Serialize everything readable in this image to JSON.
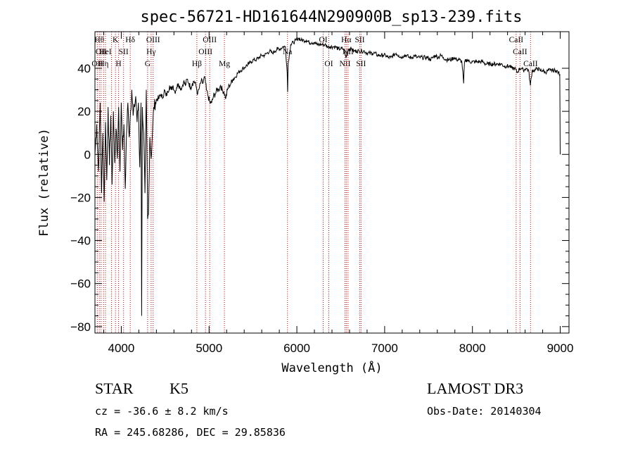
{
  "chart_data": {
    "type": "line",
    "title": "spec-56721-HD161644N290900B_sp13-239.fits",
    "xlabel": "Wavelength (Å)",
    "ylabel": "Flux (relative)",
    "xlim": [
      3700,
      9100
    ],
    "ylim": [
      -83,
      57
    ],
    "xticks": [
      "4000",
      "5000",
      "6000",
      "7000",
      "8000",
      "9000"
    ],
    "yticks": [
      "-80",
      "-60",
      "-40",
      "-20",
      "0",
      "20",
      "40"
    ],
    "line_color": "#000000",
    "marker_color": "#cc0000",
    "spectrum": [
      [
        3700,
        0
      ],
      [
        3720,
        14
      ],
      [
        3740,
        -8
      ],
      [
        3760,
        24
      ],
      [
        3775,
        -18
      ],
      [
        3790,
        10
      ],
      [
        3805,
        -22
      ],
      [
        3820,
        15
      ],
      [
        3835,
        -12
      ],
      [
        3850,
        22
      ],
      [
        3865,
        -5
      ],
      [
        3880,
        18
      ],
      [
        3895,
        -14
      ],
      [
        3910,
        20
      ],
      [
        3925,
        -4
      ],
      [
        3940,
        12
      ],
      [
        3955,
        -2
      ],
      [
        3970,
        22
      ],
      [
        3985,
        -8
      ],
      [
        4000,
        24
      ],
      [
        4015,
        2
      ],
      [
        4030,
        14
      ],
      [
        4045,
        -16
      ],
      [
        4060,
        10
      ],
      [
        4075,
        24
      ],
      [
        4090,
        8
      ],
      [
        4105,
        20
      ],
      [
        4120,
        30
      ],
      [
        4135,
        18
      ],
      [
        4150,
        22
      ],
      [
        4165,
        27
      ],
      [
        4180,
        15
      ],
      [
        4195,
        24
      ],
      [
        4210,
        -6
      ],
      [
        4225,
        24
      ],
      [
        4232,
        -75
      ],
      [
        4240,
        22
      ],
      [
        4255,
        10
      ],
      [
        4270,
        -18
      ],
      [
        4285,
        30
      ],
      [
        4300,
        -30
      ],
      [
        4310,
        -28
      ],
      [
        4325,
        8
      ],
      [
        4340,
        -2
      ],
      [
        4355,
        10
      ],
      [
        4370,
        22
      ],
      [
        4390,
        24
      ],
      [
        4410,
        26
      ],
      [
        4430,
        26
      ],
      [
        4450,
        28
      ],
      [
        4470,
        26
      ],
      [
        4490,
        30
      ],
      [
        4510,
        27
      ],
      [
        4530,
        29
      ],
      [
        4550,
        32
      ],
      [
        4570,
        30
      ],
      [
        4590,
        32
      ],
      [
        4610,
        29
      ],
      [
        4630,
        31
      ],
      [
        4650,
        33
      ],
      [
        4670,
        31
      ],
      [
        4690,
        31
      ],
      [
        4710,
        34
      ],
      [
        4730,
        32
      ],
      [
        4750,
        35
      ],
      [
        4770,
        33
      ],
      [
        4790,
        31
      ],
      [
        4810,
        33
      ],
      [
        4830,
        34
      ],
      [
        4850,
        32
      ],
      [
        4870,
        28
      ],
      [
        4890,
        31
      ],
      [
        4910,
        34
      ],
      [
        4930,
        33
      ],
      [
        4950,
        36
      ],
      [
        4970,
        30
      ],
      [
        4990,
        27
      ],
      [
        5010,
        24
      ],
      [
        5030,
        24
      ],
      [
        5050,
        27
      ],
      [
        5070,
        28
      ],
      [
        5090,
        30
      ],
      [
        5110,
        30
      ],
      [
        5130,
        32
      ],
      [
        5150,
        30
      ],
      [
        5170,
        29
      ],
      [
        5190,
        26
      ],
      [
        5210,
        30
      ],
      [
        5230,
        32
      ],
      [
        5250,
        33
      ],
      [
        5270,
        35
      ],
      [
        5300,
        36
      ],
      [
        5330,
        38
      ],
      [
        5360,
        39
      ],
      [
        5390,
        40
      ],
      [
        5420,
        41
      ],
      [
        5450,
        42
      ],
      [
        5480,
        43
      ],
      [
        5510,
        44
      ],
      [
        5540,
        44
      ],
      [
        5570,
        45
      ],
      [
        5600,
        46
      ],
      [
        5630,
        46
      ],
      [
        5660,
        47
      ],
      [
        5690,
        48
      ],
      [
        5720,
        47
      ],
      [
        5750,
        48
      ],
      [
        5780,
        49
      ],
      [
        5810,
        49
      ],
      [
        5840,
        50
      ],
      [
        5870,
        50
      ],
      [
        5890,
        38
      ],
      [
        5895,
        29
      ],
      [
        5900,
        42
      ],
      [
        5930,
        51
      ],
      [
        5960,
        52
      ],
      [
        5990,
        53
      ],
      [
        6020,
        54
      ],
      [
        6050,
        53
      ],
      [
        6080,
        53
      ],
      [
        6110,
        53
      ],
      [
        6140,
        52
      ],
      [
        6170,
        52
      ],
      [
        6200,
        52
      ],
      [
        6230,
        51
      ],
      [
        6260,
        51
      ],
      [
        6290,
        51
      ],
      [
        6320,
        51
      ],
      [
        6350,
        50
      ],
      [
        6380,
        50
      ],
      [
        6410,
        50
      ],
      [
        6440,
        50
      ],
      [
        6470,
        49
      ],
      [
        6500,
        49
      ],
      [
        6530,
        49
      ],
      [
        6560,
        45
      ],
      [
        6590,
        49
      ],
      [
        6620,
        49
      ],
      [
        6650,
        48
      ],
      [
        6680,
        48
      ],
      [
        6710,
        48
      ],
      [
        6740,
        48
      ],
      [
        6770,
        48
      ],
      [
        6800,
        47
      ],
      [
        6830,
        47
      ],
      [
        6860,
        47
      ],
      [
        6890,
        47
      ],
      [
        6920,
        46
      ],
      [
        6950,
        46
      ],
      [
        6980,
        46
      ],
      [
        7010,
        46
      ],
      [
        7040,
        45
      ],
      [
        7070,
        45
      ],
      [
        7100,
        46
      ],
      [
        7130,
        47
      ],
      [
        7160,
        46
      ],
      [
        7190,
        45
      ],
      [
        7220,
        46
      ],
      [
        7250,
        46
      ],
      [
        7280,
        45
      ],
      [
        7310,
        45
      ],
      [
        7340,
        46
      ],
      [
        7370,
        45
      ],
      [
        7400,
        45
      ],
      [
        7430,
        45
      ],
      [
        7460,
        45
      ],
      [
        7490,
        45
      ],
      [
        7520,
        44
      ],
      [
        7550,
        45
      ],
      [
        7580,
        46
      ],
      [
        7610,
        45
      ],
      [
        7640,
        46
      ],
      [
        7670,
        45
      ],
      [
        7700,
        44
      ],
      [
        7730,
        44
      ],
      [
        7760,
        44
      ],
      [
        7790,
        45
      ],
      [
        7820,
        44
      ],
      [
        7850,
        44
      ],
      [
        7880,
        43
      ],
      [
        7900,
        33
      ],
      [
        7910,
        43
      ],
      [
        7940,
        44
      ],
      [
        7970,
        43
      ],
      [
        8000,
        43
      ],
      [
        8030,
        43
      ],
      [
        8060,
        43
      ],
      [
        8090,
        43
      ],
      [
        8120,
        43
      ],
      [
        8150,
        42
      ],
      [
        8180,
        42
      ],
      [
        8210,
        42
      ],
      [
        8240,
        42
      ],
      [
        8270,
        42
      ],
      [
        8300,
        42
      ],
      [
        8330,
        42
      ],
      [
        8360,
        41
      ],
      [
        8390,
        41
      ],
      [
        8420,
        41
      ],
      [
        8450,
        40
      ],
      [
        8480,
        40
      ],
      [
        8510,
        38
      ],
      [
        8540,
        40
      ],
      [
        8560,
        40
      ],
      [
        8580,
        39
      ],
      [
        8610,
        40
      ],
      [
        8640,
        39
      ],
      [
        8660,
        32
      ],
      [
        8680,
        39
      ],
      [
        8710,
        39
      ],
      [
        8740,
        40
      ],
      [
        8770,
        39
      ],
      [
        8800,
        39
      ],
      [
        8830,
        38
      ],
      [
        8860,
        39
      ],
      [
        8890,
        39
      ],
      [
        8920,
        39
      ],
      [
        8950,
        39
      ],
      [
        8980,
        38
      ],
      [
        8995,
        37
      ],
      [
        9000,
        0
      ]
    ],
    "line_markers": [
      {
        "wavelength": 3727,
        "label": "OII",
        "row": 3
      },
      {
        "wavelength": 3750,
        "label": "Hθ",
        "row": 1
      },
      {
        "wavelength": 3770,
        "label": "OII",
        "row": 2
      },
      {
        "wavelength": 3798,
        "label": "Hη",
        "row": 3
      },
      {
        "wavelength": 3820,
        "label": "HeI",
        "row": 2
      },
      {
        "wavelength": 3889,
        "label": "",
        "row": 0
      },
      {
        "wavelength": 3934,
        "label": "K",
        "row": 1
      },
      {
        "wavelength": 3969,
        "label": "H",
        "row": 3
      },
      {
        "wavelength": 4026,
        "label": "SII",
        "row": 2
      },
      {
        "wavelength": 4102,
        "label": "Hδ",
        "row": 1
      },
      {
        "wavelength": 4300,
        "label": "G",
        "row": 3
      },
      {
        "wavelength": 4340,
        "label": "Hγ",
        "row": 2
      },
      {
        "wavelength": 4363,
        "label": "OIII",
        "row": 1
      },
      {
        "wavelength": 4861,
        "label": "Hβ",
        "row": 3
      },
      {
        "wavelength": 4959,
        "label": "OIII",
        "row": 2
      },
      {
        "wavelength": 5007,
        "label": "OIII",
        "row": 1
      },
      {
        "wavelength": 5175,
        "label": "Mg",
        "row": 3
      },
      {
        "wavelength": 5893,
        "label": "Na",
        "row": 2
      },
      {
        "wavelength": 6300,
        "label": "OI",
        "row": 1
      },
      {
        "wavelength": 6364,
        "label": "OI",
        "row": 3
      },
      {
        "wavelength": 6548,
        "label": "NII",
        "row": 3
      },
      {
        "wavelength": 6563,
        "label": "Hα",
        "row": 1
      },
      {
        "wavelength": 6583,
        "label": "NII",
        "row": 2
      },
      {
        "wavelength": 6717,
        "label": "SII",
        "row": 1
      },
      {
        "wavelength": 6731,
        "label": "SII",
        "row": 3
      },
      {
        "wavelength": 8498,
        "label": "CaII",
        "row": 1
      },
      {
        "wavelength": 8542,
        "label": "CaII",
        "row": 2
      },
      {
        "wavelength": 8662,
        "label": "CaII",
        "row": 3
      }
    ]
  },
  "info": {
    "class_label": "STAR",
    "subclass": "K5",
    "survey": "LAMOST DR3",
    "cz": "cz = -36.6 ± 8.2 km/s",
    "obs_date": "Obs-Date: 20140304",
    "coords": "RA = 245.68286, DEC =  29.85836"
  }
}
